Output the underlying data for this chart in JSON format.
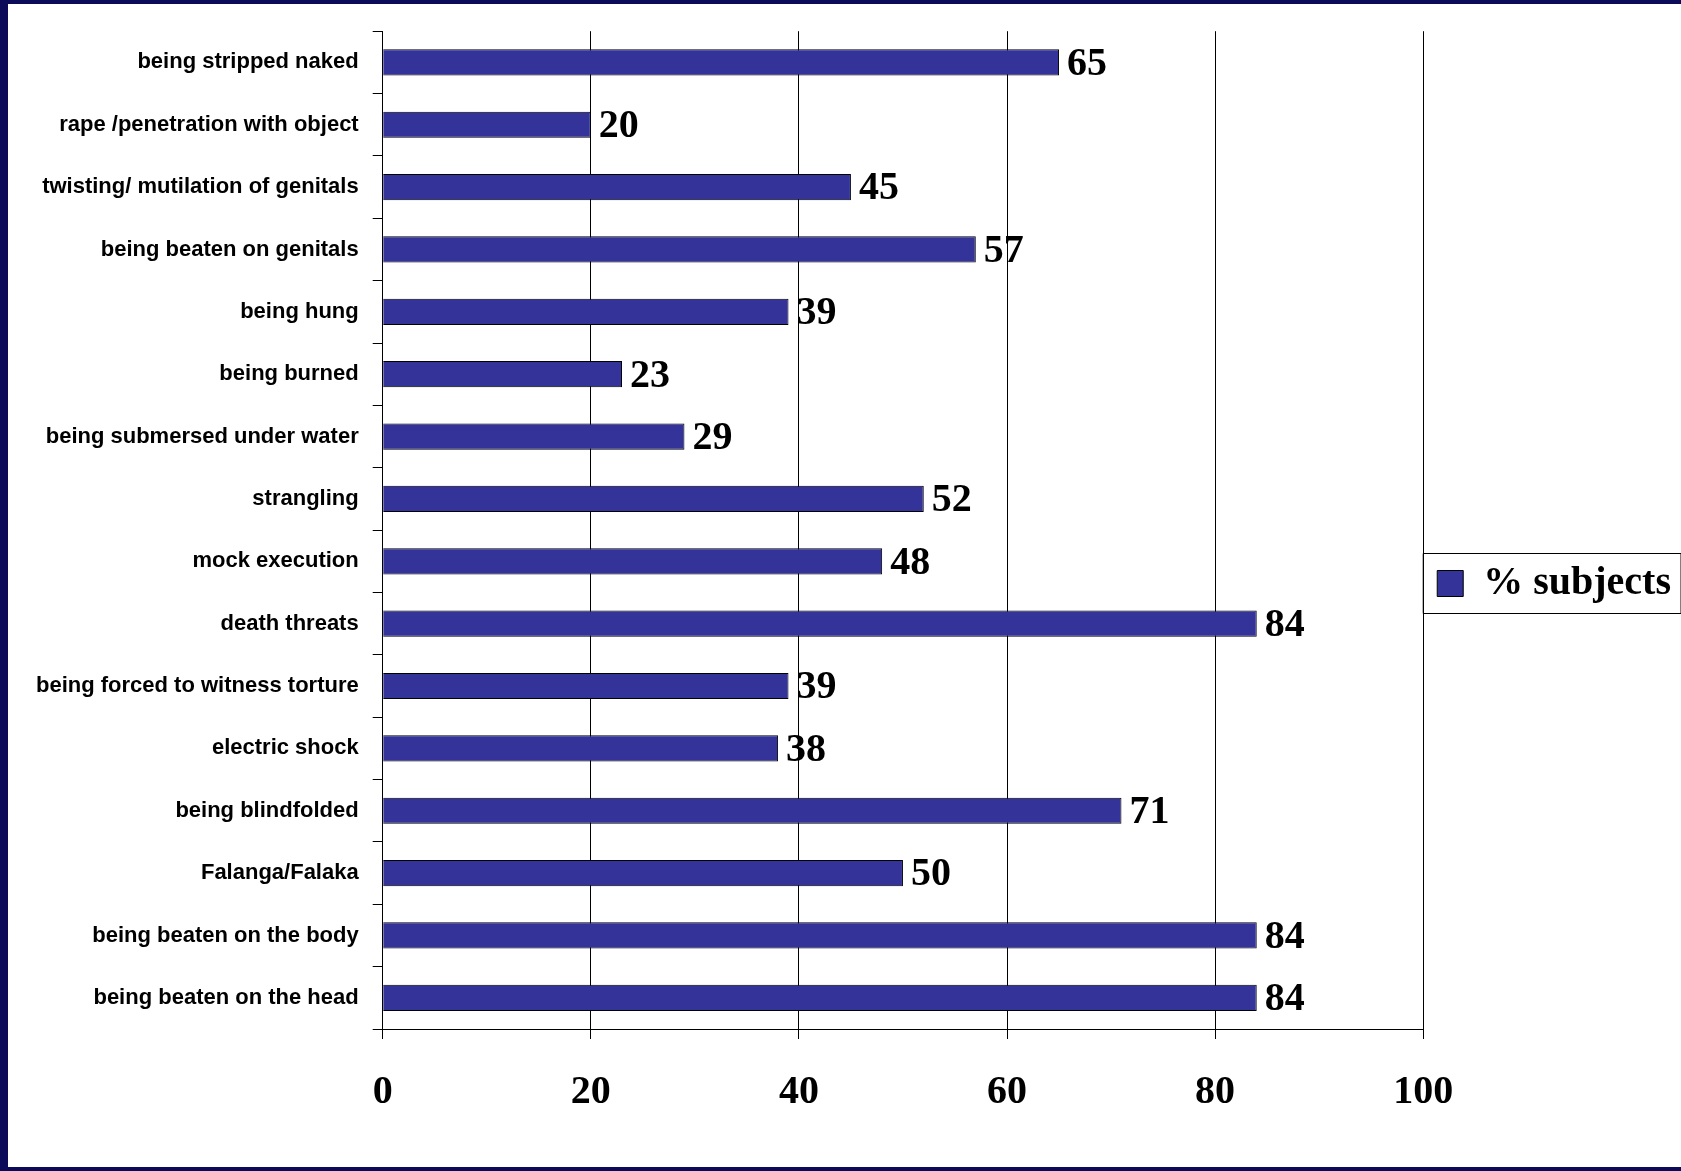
{
  "chart_data": {
    "type": "bar",
    "orientation": "horizontal",
    "categories": [
      "being stripped naked",
      "rape /penetration with object",
      "twisting/ mutilation of genitals",
      "being beaten on genitals",
      "being hung",
      "being burned",
      "being submersed under water",
      "strangling",
      "mock execution",
      "death threats",
      "being forced to witness torture",
      "electric shock",
      "being blindfolded",
      "Falanga/Falaka",
      "being beaten on the body",
      "being beaten on the head"
    ],
    "series": [
      {
        "name": "% subjects",
        "color": "#333399",
        "values": [
          65,
          20,
          45,
          57,
          39,
          23,
          29,
          52,
          48,
          84,
          39,
          38,
          71,
          50,
          84,
          84
        ]
      }
    ],
    "xlim": [
      0,
      100
    ],
    "xticks": [
      0,
      20,
      40,
      60,
      80,
      100
    ],
    "grid": "x",
    "legend": "right",
    "data_labels": true
  }
}
